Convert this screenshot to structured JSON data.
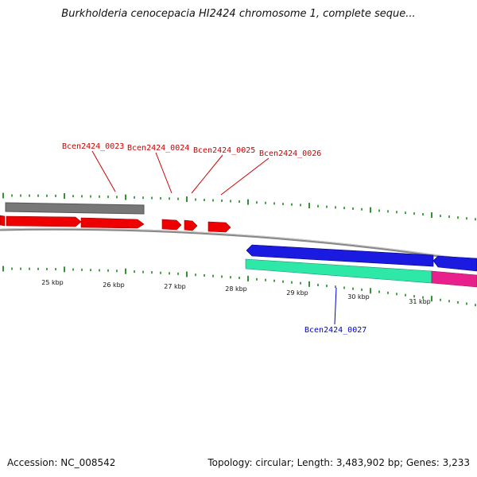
{
  "header": {
    "title": "Burkholderia cenocepacia HI2424 chromosome 1, complete seque..."
  },
  "footer": {
    "accession": "Accession: NC_008542",
    "summary": "Topology: circular; Length: 3,483,902 bp; Genes: 3,233"
  },
  "colors": {
    "backbone": "#888888",
    "forward_gene": "#ee0000",
    "reverse_gene": "#1a1ae0",
    "gray_feature": "#777777",
    "teal_feature": "#2ee8a8",
    "pink_feature": "#e8208c",
    "tick": "#007700",
    "label_forward": "#cc0000",
    "label_reverse": "#0000cc"
  },
  "scale_labels": [
    "25 kbp",
    "26 kbp",
    "27 kbp",
    "28 kbp",
    "29 kbp",
    "30 kbp",
    "31 kbp"
  ],
  "gene_labels": {
    "top": [
      "Bcen2424_0023",
      "Bcen2424_0024",
      "Bcen2424_0025",
      "Bcen2424_0026"
    ],
    "bottom": [
      "Bcen2424_0027"
    ]
  }
}
